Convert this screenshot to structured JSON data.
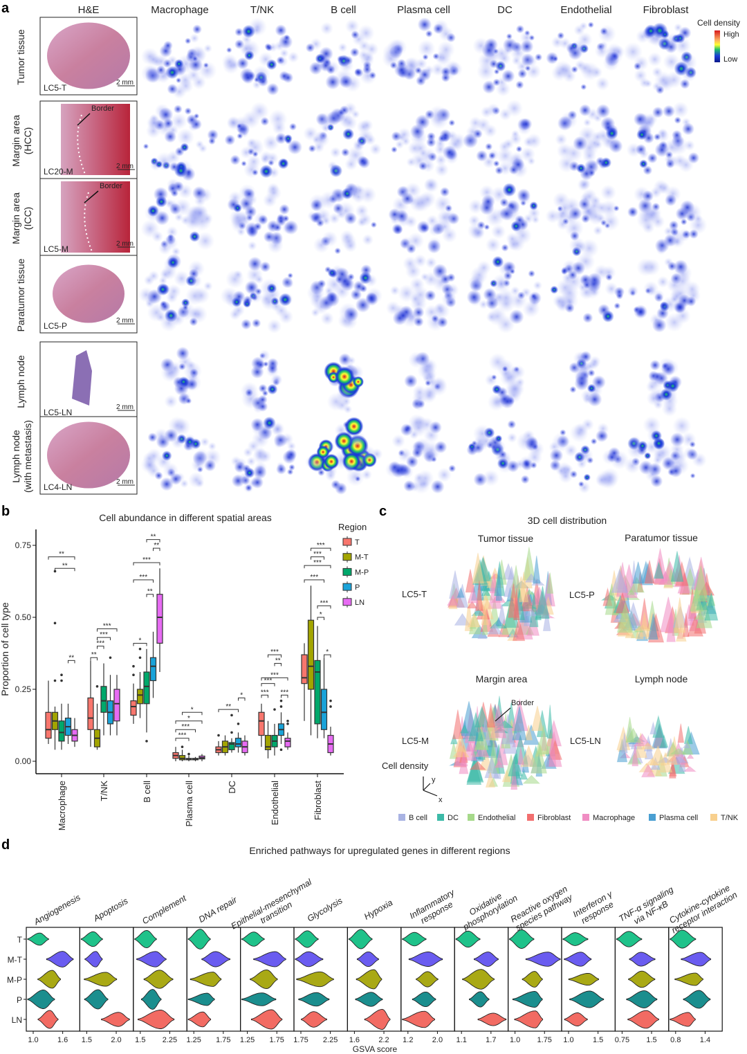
{
  "panel_labels": {
    "a": "a",
    "b": "b",
    "c": "c",
    "d": "d"
  },
  "panel_a": {
    "columns": [
      "H&E",
      "Macrophage",
      "T/NK",
      "B cell",
      "Plasma cell",
      "DC",
      "Endothelial",
      "Fibroblast"
    ],
    "rows": [
      {
        "label": [
          "Tumor tissue"
        ],
        "sample": "LC5-T"
      },
      {
        "label": [
          "Margin area",
          "(HCC)"
        ],
        "sample": "LC20-M",
        "border": "Border"
      },
      {
        "label": [
          "Margin area",
          "(ICC)"
        ],
        "sample": "LC5-M",
        "border": "Border"
      },
      {
        "label": [
          "Paratumor tissue"
        ],
        "sample": "LC5-P"
      },
      {
        "label": [
          "Lymph node"
        ],
        "sample": "LC5-LN"
      },
      {
        "label": [
          "Lymph node",
          "(with metastasis)"
        ],
        "sample": "LC4-LN"
      }
    ],
    "scale_bar": "2 mm",
    "legend": {
      "title": "Cell density",
      "high": "High",
      "low": "Low",
      "colors": [
        "#d7191c",
        "#fdae61",
        "#ffff33",
        "#1fbf6a",
        "#1a3ad8",
        "#0a1a8a"
      ]
    }
  },
  "chart_data": [
    {
      "type": "box",
      "title": "Cell abundance in different spatial areas",
      "xlabel": "",
      "ylabel": "Proportion of cell type",
      "ylim": [
        -0.03,
        0.8
      ],
      "yticks": [
        "0.00",
        "0.25",
        "0.50",
        "0.75"
      ],
      "categories": [
        "Macrophage",
        "T/NK",
        "B cell",
        "Plasma cell",
        "DC",
        "Endothelial",
        "Fibroblast"
      ],
      "legend": {
        "title": "Region",
        "placement": "right"
      },
      "series": [
        {
          "name": "T",
          "color": "#f8766d",
          "stats": [
            {
              "low": 0.06,
              "q1": 0.08,
              "median": 0.11,
              "q3": 0.17,
              "high": 0.28,
              "outliers": []
            },
            {
              "low": 0.05,
              "q1": 0.11,
              "median": 0.15,
              "q3": 0.22,
              "high": 0.35,
              "outliers": []
            },
            {
              "low": 0.13,
              "q1": 0.16,
              "median": 0.19,
              "q3": 0.21,
              "high": 0.27,
              "outliers": [
                0.3,
                0.33
              ]
            },
            {
              "low": 0.0,
              "q1": 0.01,
              "median": 0.02,
              "q3": 0.03,
              "high": 0.05,
              "outliers": []
            },
            {
              "low": 0.02,
              "q1": 0.03,
              "median": 0.04,
              "q3": 0.05,
              "high": 0.07,
              "outliers": [
                0.09
              ]
            },
            {
              "low": 0.05,
              "q1": 0.09,
              "median": 0.14,
              "q3": 0.17,
              "high": 0.2,
              "outliers": []
            },
            {
              "low": 0.14,
              "q1": 0.27,
              "median": 0.29,
              "q3": 0.37,
              "high": 0.41,
              "outliers": []
            }
          ]
        },
        {
          "name": "M-T",
          "color": "#a3a500",
          "stats": [
            {
              "low": 0.04,
              "q1": 0.11,
              "median": 0.14,
              "q3": 0.17,
              "high": 0.19,
              "outliers": [
                0.28,
                0.48,
                0.66
              ]
            },
            {
              "low": 0.04,
              "q1": 0.05,
              "median": 0.08,
              "q3": 0.11,
              "high": 0.2,
              "outliers": [
                0.26
              ]
            },
            {
              "low": 0.15,
              "q1": 0.2,
              "median": 0.23,
              "q3": 0.25,
              "high": 0.31,
              "outliers": [
                0.36,
                0.39
              ]
            },
            {
              "low": 0.0,
              "q1": 0.005,
              "median": 0.01,
              "q3": 0.02,
              "high": 0.04,
              "outliers": [
                0.05
              ]
            },
            {
              "low": 0.02,
              "q1": 0.03,
              "median": 0.05,
              "q3": 0.07,
              "high": 0.09,
              "outliers": []
            },
            {
              "low": 0.01,
              "q1": 0.04,
              "median": 0.05,
              "q3": 0.09,
              "high": 0.14,
              "outliers": []
            },
            {
              "low": 0.09,
              "q1": 0.25,
              "median": 0.33,
              "q3": 0.49,
              "high": 0.61,
              "outliers": []
            }
          ]
        },
        {
          "name": "M-P",
          "color": "#00a86b",
          "stats": [
            {
              "low": 0.04,
              "q1": 0.07,
              "median": 0.1,
              "q3": 0.14,
              "high": 0.2,
              "outliers": [
                0.28,
                0.3
              ]
            },
            {
              "low": 0.09,
              "q1": 0.17,
              "median": 0.21,
              "q3": 0.26,
              "high": 0.34,
              "outliers": []
            },
            {
              "low": 0.1,
              "q1": 0.2,
              "median": 0.26,
              "q3": 0.31,
              "high": 0.39,
              "outliers": [
                0.07
              ]
            },
            {
              "low": 0.0,
              "q1": 0.005,
              "median": 0.007,
              "q3": 0.01,
              "high": 0.02,
              "outliers": [
                0.025
              ]
            },
            {
              "low": 0.03,
              "q1": 0.04,
              "median": 0.06,
              "q3": 0.065,
              "high": 0.08,
              "outliers": [
                0.1,
                0.16
              ]
            },
            {
              "low": 0.02,
              "q1": 0.05,
              "median": 0.07,
              "q3": 0.09,
              "high": 0.13,
              "outliers": [
                0.18
              ]
            },
            {
              "low": 0.08,
              "q1": 0.13,
              "median": 0.31,
              "q3": 0.35,
              "high": 0.47,
              "outliers": []
            }
          ]
        },
        {
          "name": "P",
          "color": "#1aa3d9",
          "stats": [
            {
              "low": 0.06,
              "q1": 0.09,
              "median": 0.12,
              "q3": 0.15,
              "high": 0.2,
              "outliers": []
            },
            {
              "low": 0.09,
              "q1": 0.13,
              "median": 0.17,
              "q3": 0.21,
              "high": 0.3,
              "outliers": [
                0.36
              ]
            },
            {
              "low": 0.22,
              "q1": 0.28,
              "median": 0.33,
              "q3": 0.36,
              "high": 0.45,
              "outliers": []
            },
            {
              "low": 0.0,
              "q1": 0.005,
              "median": 0.008,
              "q3": 0.01,
              "high": 0.015,
              "outliers": []
            },
            {
              "low": 0.03,
              "q1": 0.05,
              "median": 0.06,
              "q3": 0.08,
              "high": 0.1,
              "outliers": [
                0.13
              ]
            },
            {
              "low": 0.06,
              "q1": 0.09,
              "median": 0.11,
              "q3": 0.13,
              "high": 0.17,
              "outliers": [
                0.04,
                0.19,
                0.21
              ]
            },
            {
              "low": 0.08,
              "q1": 0.11,
              "median": 0.17,
              "q3": 0.25,
              "high": 0.36,
              "outliers": []
            }
          ]
        },
        {
          "name": "LN",
          "color": "#e76bf3",
          "stats": [
            {
              "low": 0.05,
              "q1": 0.07,
              "median": 0.09,
              "q3": 0.11,
              "high": 0.15,
              "outliers": []
            },
            {
              "low": 0.09,
              "q1": 0.14,
              "median": 0.2,
              "q3": 0.25,
              "high": 0.3,
              "outliers": []
            },
            {
              "low": 0.31,
              "q1": 0.41,
              "median": 0.5,
              "q3": 0.58,
              "high": 0.67,
              "outliers": []
            },
            {
              "low": 0.0,
              "q1": 0.008,
              "median": 0.012,
              "q3": 0.018,
              "high": 0.025,
              "outliers": []
            },
            {
              "low": 0.02,
              "q1": 0.03,
              "median": 0.05,
              "q3": 0.07,
              "high": 0.09,
              "outliers": []
            },
            {
              "low": 0.04,
              "q1": 0.05,
              "median": 0.07,
              "q3": 0.08,
              "high": 0.1,
              "outliers": [
                0.13,
                0.14
              ]
            },
            {
              "low": 0.02,
              "q1": 0.03,
              "median": 0.06,
              "q3": 0.09,
              "high": 0.12,
              "outliers": [
                0.19,
                0.21
              ]
            }
          ]
        }
      ],
      "significance": [
        {
          "category": "Macrophage",
          "from": "T",
          "to": "LN",
          "label": "**",
          "y": 0.71
        },
        {
          "category": "Macrophage",
          "from": "M-T",
          "to": "LN",
          "label": "**",
          "y": 0.67
        },
        {
          "category": "Macrophage",
          "from": "P",
          "to": "LN",
          "label": "**",
          "y": 0.35
        },
        {
          "category": "T/NK",
          "from": "T",
          "to": "M-T",
          "label": "**",
          "y": 0.36
        },
        {
          "category": "T/NK",
          "from": "M-T",
          "to": "M-P",
          "label": "***",
          "y": 0.4
        },
        {
          "category": "T/NK",
          "from": "M-T",
          "to": "P",
          "label": "***",
          "y": 0.43
        },
        {
          "category": "T/NK",
          "from": "M-T",
          "to": "LN",
          "label": "***",
          "y": 0.46
        },
        {
          "category": "B cell",
          "from": "M-P",
          "to": "LN",
          "label": "**",
          "y": 0.77
        },
        {
          "category": "B cell",
          "from": "P",
          "to": "LN",
          "label": "**",
          "y": 0.74
        },
        {
          "category": "B cell",
          "from": "T",
          "to": "LN",
          "label": "***",
          "y": 0.69
        },
        {
          "category": "B cell",
          "from": "T",
          "to": "P",
          "label": "***",
          "y": 0.63
        },
        {
          "category": "B cell",
          "from": "M-P",
          "to": "P",
          "label": "**",
          "y": 0.58
        },
        {
          "category": "B cell",
          "from": "T",
          "to": "M-P",
          "label": "*",
          "y": 0.41
        },
        {
          "category": "Plasma cell",
          "from": "M-T",
          "to": "LN",
          "label": "*",
          "y": 0.17
        },
        {
          "category": "Plasma cell",
          "from": "T",
          "to": "LN",
          "label": "*",
          "y": 0.14
        },
        {
          "category": "Plasma cell",
          "from": "T",
          "to": "P",
          "label": "***",
          "y": 0.11
        },
        {
          "category": "Plasma cell",
          "from": "T",
          "to": "M-P",
          "label": "***",
          "y": 0.08
        },
        {
          "category": "DC",
          "from": "T",
          "to": "P",
          "label": "**",
          "y": 0.18
        },
        {
          "category": "DC",
          "from": "P",
          "to": "LN",
          "label": "*",
          "y": 0.22
        },
        {
          "category": "Endothelial",
          "from": "M-T",
          "to": "P",
          "label": "***",
          "y": 0.37
        },
        {
          "category": "Endothelial",
          "from": "M-P",
          "to": "P",
          "label": "**",
          "y": 0.34
        },
        {
          "category": "Endothelial",
          "from": "T",
          "to": "LN",
          "label": "***",
          "y": 0.29
        },
        {
          "category": "Endothelial",
          "from": "T",
          "to": "M-P",
          "label": "***",
          "y": 0.27
        },
        {
          "category": "Endothelial",
          "from": "T",
          "to": "M-T",
          "label": "***",
          "y": 0.23
        },
        {
          "category": "Endothelial",
          "from": "P",
          "to": "LN",
          "label": "***",
          "y": 0.23
        },
        {
          "category": "Fibroblast",
          "from": "M-T",
          "to": "LN",
          "label": "***",
          "y": 0.74
        },
        {
          "category": "Fibroblast",
          "from": "M-T",
          "to": "P",
          "label": "***",
          "y": 0.71
        },
        {
          "category": "Fibroblast",
          "from": "T",
          "to": "LN",
          "label": "***",
          "y": 0.68
        },
        {
          "category": "Fibroblast",
          "from": "T",
          "to": "P",
          "label": "***",
          "y": 0.63
        },
        {
          "category": "Fibroblast",
          "from": "M-P",
          "to": "LN",
          "label": "***",
          "y": 0.54
        },
        {
          "category": "Fibroblast",
          "from": "M-P",
          "to": "P",
          "label": "*",
          "y": 0.5
        },
        {
          "category": "Fibroblast",
          "from": "P",
          "to": "LN",
          "label": "*",
          "y": 0.37
        }
      ]
    },
    {
      "type": "violin",
      "title": "Enriched pathways for upregulated genes in different regions",
      "xlabel": "GSVA score",
      "groups": [
        "T",
        "M-T",
        "M-P",
        "P",
        "LN"
      ],
      "group_colors": [
        "#1fc28a",
        "#6a5cf0",
        "#a9a915",
        "#1b8e8e",
        "#f26b63"
      ],
      "pathways": [
        {
          "label": [
            "Angiogenesis"
          ],
          "ticks": [
            "1.0",
            "1.6"
          ]
        },
        {
          "label": [
            "Apoptosis"
          ],
          "ticks": [
            "1.5",
            "2.0"
          ]
        },
        {
          "label": [
            "Complement"
          ],
          "ticks": [
            "1.5",
            "2.25"
          ]
        },
        {
          "label": [
            "DNA repair"
          ],
          "ticks": [
            "1.25",
            "1.75"
          ]
        },
        {
          "label": [
            "Epithelial-mesenchymal",
            "transition"
          ],
          "ticks": [
            "1.25",
            "1.75"
          ]
        },
        {
          "label": [
            "Glycolysis"
          ],
          "ticks": [
            "1.75",
            "2.25"
          ]
        },
        {
          "label": [
            "Hypoxia"
          ],
          "ticks": [
            "1.6",
            "2.2"
          ]
        },
        {
          "label": [
            "Inflammatory",
            "response"
          ],
          "ticks": [
            "1.2",
            "2.0"
          ]
        },
        {
          "label": [
            "Oxidative",
            "phosphorylation"
          ],
          "ticks": [
            "1.1",
            "1.7"
          ]
        },
        {
          "label": [
            "Reactive oxygen",
            "species pathway"
          ],
          "ticks": [
            "1.0",
            "1.75"
          ]
        },
        {
          "label": [
            "Interferon γ",
            "response"
          ],
          "ticks": [
            "1.0",
            "1.5"
          ]
        },
        {
          "label": [
            "TNF-α signaling",
            "via NF-κB"
          ],
          "ticks": [
            "0.75",
            "1.5"
          ]
        },
        {
          "label": [
            "Cytokine-cytokine",
            "receptor interaction"
          ],
          "ticks": [
            "0.8",
            "1.4"
          ]
        }
      ]
    },
    {
      "type": "3d-surface",
      "title": "3D cell distribution",
      "panels": [
        {
          "title": "Tumor tissue",
          "sample": "LC5-T"
        },
        {
          "title": "Paratumor tissue",
          "sample": "LC5-P"
        },
        {
          "title": "Margin area",
          "sample": "LC5-M",
          "annotation": "Border"
        },
        {
          "title": "Lymph node",
          "sample": "LC5-LN"
        }
      ],
      "zlabel": "Cell density",
      "axes": {
        "x": "x",
        "y": "y"
      },
      "legend": [
        {
          "name": "B cell",
          "color": "#a9b3e3"
        },
        {
          "name": "DC",
          "color": "#3dbaa8"
        },
        {
          "name": "Endothelial",
          "color": "#a6d98a"
        },
        {
          "name": "Fibroblast",
          "color": "#f26f6f"
        },
        {
          "name": "Macrophage",
          "color": "#f08dc3"
        },
        {
          "name": "Plasma cell",
          "color": "#4a9fd2"
        },
        {
          "name": "T/NK",
          "color": "#f8d08e"
        }
      ]
    }
  ]
}
